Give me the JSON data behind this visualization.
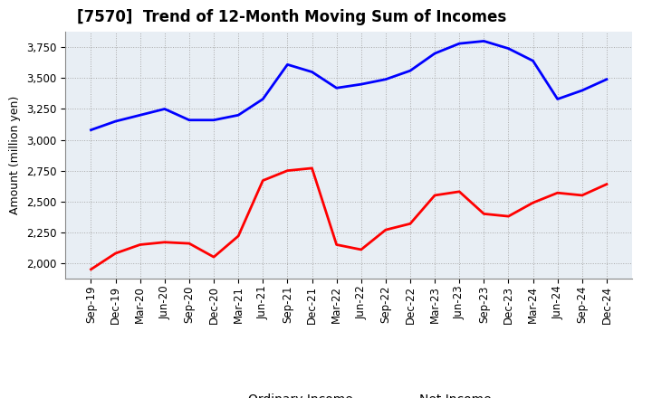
{
  "title": "[7570]  Trend of 12-Month Moving Sum of Incomes",
  "ylabel": "Amount (million yen)",
  "x_labels": [
    "Sep-19",
    "Dec-19",
    "Mar-20",
    "Jun-20",
    "Sep-20",
    "Dec-20",
    "Mar-21",
    "Jun-21",
    "Sep-21",
    "Dec-21",
    "Mar-22",
    "Jun-22",
    "Sep-22",
    "Dec-22",
    "Mar-23",
    "Jun-23",
    "Sep-23",
    "Dec-23",
    "Mar-24",
    "Jun-24",
    "Sep-24",
    "Dec-24"
  ],
  "ordinary_income": [
    3080,
    3150,
    3200,
    3250,
    3160,
    3160,
    3200,
    3330,
    3610,
    3550,
    3420,
    3450,
    3490,
    3560,
    3700,
    3780,
    3800,
    3740,
    3640,
    3330,
    3400,
    3490
  ],
  "net_income": [
    1950,
    2080,
    2150,
    2170,
    2160,
    2050,
    2220,
    2670,
    2750,
    2770,
    2150,
    2110,
    2270,
    2320,
    2550,
    2580,
    2400,
    2380,
    2490,
    2570,
    2550,
    2640
  ],
  "ordinary_color": "#0000FF",
  "net_color": "#FF0000",
  "plot_background_color": "#E8EEF4",
  "fig_background_color": "#FFFFFF",
  "grid_color": "#AAAAAA",
  "ylim": [
    1875,
    3875
  ],
  "yticks": [
    2000,
    2250,
    2500,
    2750,
    3000,
    3250,
    3500,
    3750
  ],
  "title_fontsize": 12,
  "axis_fontsize": 9,
  "tick_fontsize": 8.5,
  "legend_fontsize": 10,
  "line_width": 2.0
}
